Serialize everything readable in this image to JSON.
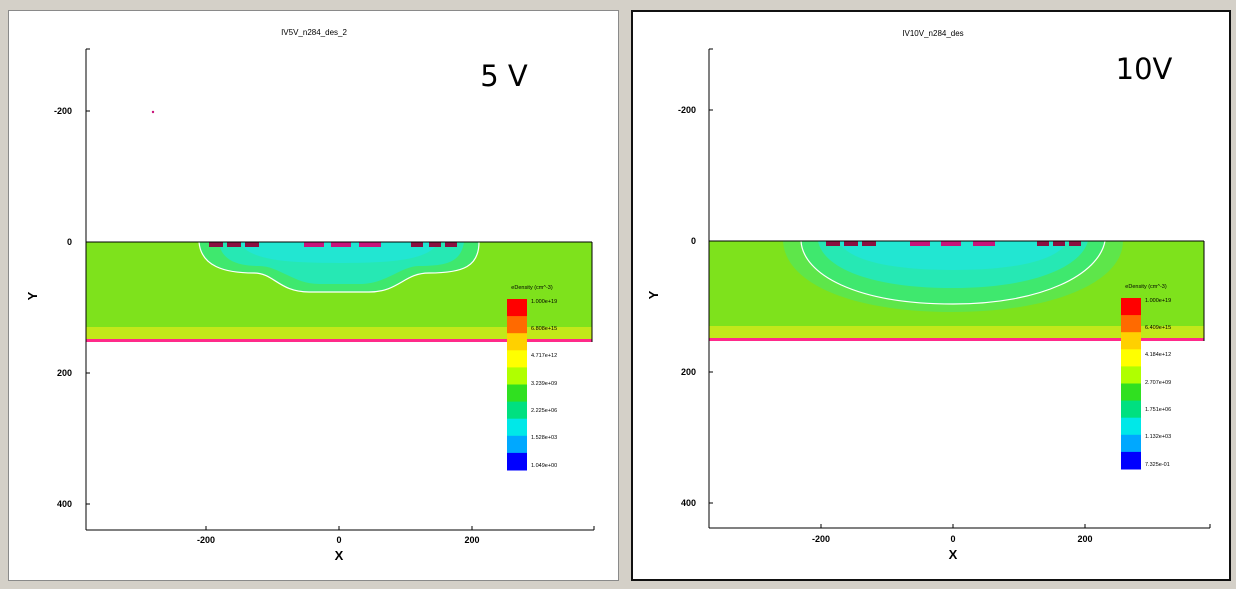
{
  "panels": [
    {
      "id": "left",
      "title": "IV5V_n284_des_2",
      "voltage_label": "5 V",
      "xlabel": "X",
      "ylabel": "Y",
      "x_ticks": [
        "-200",
        "0",
        "200"
      ],
      "y_ticks": [
        "-200",
        "0",
        "200",
        "400"
      ],
      "legend": {
        "title": "eDensity (cm^-3)",
        "ticks": [
          "1.000e+19",
          "6.808e+15",
          "4.717e+12",
          "3.239e+09",
          "2.225e+06",
          "1.528e+03",
          "1.049e+00"
        ]
      }
    },
    {
      "id": "right",
      "title": "IV10V_n284_des",
      "voltage_label": "10V",
      "xlabel": "X",
      "ylabel": "Y",
      "x_ticks": [
        "-200",
        "0",
        "200"
      ],
      "y_ticks": [
        "-200",
        "0",
        "200",
        "400"
      ],
      "legend": {
        "title": "eDensity (cm^-3)",
        "ticks": [
          "1.000e+19",
          "6.409e+15",
          "4.184e+12",
          "2.707e+09",
          "1.751e+06",
          "1.132e+03",
          "7.325e-01"
        ]
      }
    }
  ],
  "colors": {
    "bulk": "#7ee21c",
    "depletion_outer": "#3fe86e",
    "depletion_mid": "#26e8b4",
    "depletion_core": "#22e6d2",
    "backside_contact": "#ff2a8a",
    "implant": "#c8147a",
    "colorbar": [
      "#ff0000",
      "#ff6a00",
      "#ffd000",
      "#ffff00",
      "#b0ff00",
      "#30e020",
      "#00e080",
      "#00e8e8",
      "#00a8ff",
      "#0000ff"
    ]
  }
}
